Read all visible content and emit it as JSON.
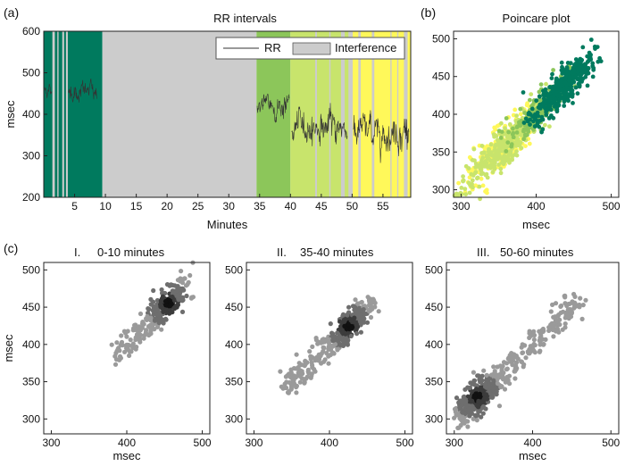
{
  "panel_labels": [
    "(a)",
    "(b)",
    "(c)"
  ],
  "colors": {
    "dark_green": "#007a5e",
    "mid_green": "#8cc65a",
    "light_green": "#c8e46c",
    "yellow": "#fff85a",
    "interference": "#cccccc",
    "rr_line": "#333333"
  },
  "chart_data": [
    {
      "type": "line",
      "title": "RR intervals",
      "xlabel": "Minutes",
      "ylabel": "msec",
      "xlim": [
        0,
        59.5
      ],
      "ylim": [
        200,
        600
      ],
      "xticks": [
        5,
        10,
        15,
        20,
        25,
        30,
        35,
        40,
        45,
        50,
        55
      ],
      "yticks": [
        200,
        300,
        400,
        500,
        600
      ],
      "legend": {
        "placement": "top-right",
        "entries": [
          {
            "label": "RR",
            "kind": "line"
          },
          {
            "label": "Interference",
            "kind": "patch"
          }
        ]
      },
      "bands": [
        {
          "from": 0,
          "to": 9.5,
          "color": "dark_green"
        },
        {
          "from": 9.5,
          "to": 34.5,
          "color": "interference"
        },
        {
          "from": 34.5,
          "to": 40,
          "color": "mid_green"
        },
        {
          "from": 40,
          "to": 50,
          "color": "light_green"
        },
        {
          "from": 50,
          "to": 59.5,
          "color": "yellow"
        }
      ],
      "interference_gaps": [
        [
          1.4,
          1.8
        ],
        [
          2.2,
          2.4
        ],
        [
          3.0,
          3.3
        ],
        [
          3.6,
          3.9
        ],
        [
          44.0,
          44.3
        ],
        [
          46.3,
          46.5
        ],
        [
          48.2,
          48.8
        ],
        [
          49.4,
          50.1
        ],
        [
          51.0,
          51.4
        ],
        [
          53.2,
          53.6
        ],
        [
          56.2,
          56.4
        ],
        [
          57.3,
          57.5
        ],
        [
          58.4,
          59.0
        ]
      ],
      "rr_segments": [
        {
          "from": 0.1,
          "to": 1.3,
          "mean": 460,
          "amp": 8
        },
        {
          "from": 4.0,
          "to": 8.6,
          "mean": 455,
          "amp": 12
        },
        {
          "from": 34.6,
          "to": 39.8,
          "mean": 420,
          "amp": 14
        },
        {
          "from": 40.2,
          "to": 49.2,
          "mean": 370,
          "amp": 18
        },
        {
          "from": 50.2,
          "to": 59.2,
          "mean": 360,
          "amp": 20
        }
      ]
    },
    {
      "type": "scatter",
      "title": "Poincare plot",
      "xlabel": "msec",
      "ylabel": "",
      "xlim": [
        290,
        510
      ],
      "ylim": [
        290,
        510
      ],
      "xticks": [
        300,
        400,
        500
      ],
      "yticks": [
        300,
        350,
        400,
        450,
        500
      ],
      "series": [
        {
          "color": "yellow",
          "x_range": [
            305,
            400
          ],
          "center": [
            350,
            350
          ],
          "count": 240,
          "spread": 14
        },
        {
          "color": "light_green",
          "x_range": [
            300,
            420
          ],
          "center": [
            360,
            360
          ],
          "count": 320,
          "spread": 13
        },
        {
          "color": "mid_green",
          "x_range": [
            360,
            445
          ],
          "center": [
            410,
            410
          ],
          "count": 160,
          "spread": 12
        },
        {
          "color": "dark_green",
          "x_range": [
            390,
            485
          ],
          "center": [
            445,
            445
          ],
          "count": 380,
          "spread": 11
        }
      ]
    },
    {
      "type": "scatter",
      "title": "0-10 minutes",
      "roman": "I.",
      "xlabel": "msec",
      "ylabel": "msec",
      "xlim": [
        290,
        510
      ],
      "ylim": [
        280,
        510
      ],
      "xticks": [
        300,
        400,
        500
      ],
      "yticks": [
        300,
        350,
        400,
        450,
        500
      ],
      "cloud": {
        "x_range": [
          385,
          480
        ],
        "center": [
          455,
          455
        ],
        "count": 320,
        "spread": 9
      }
    },
    {
      "type": "scatter",
      "title": "35-40 minutes",
      "roman": "II.",
      "xlabel": "",
      "ylabel": "",
      "xlim": [
        290,
        510
      ],
      "ylim": [
        280,
        510
      ],
      "xticks": [
        300,
        400,
        500
      ],
      "yticks": [
        300,
        350,
        400,
        450,
        500
      ],
      "cloud": {
        "x_range": [
          340,
          455
        ],
        "center": [
          425,
          425
        ],
        "count": 360,
        "spread": 9
      }
    },
    {
      "type": "scatter",
      "title": "50-60 minutes",
      "roman": "III.",
      "xlabel": "msec",
      "ylabel": "",
      "xlim": [
        290,
        510
      ],
      "ylim": [
        280,
        510
      ],
      "xticks": [
        300,
        400,
        500
      ],
      "yticks": [
        300,
        350,
        400,
        450,
        500
      ],
      "cloud": {
        "x_range": [
          305,
          460
        ],
        "center": [
          330,
          330
        ],
        "count": 520,
        "spread": 10
      }
    }
  ]
}
